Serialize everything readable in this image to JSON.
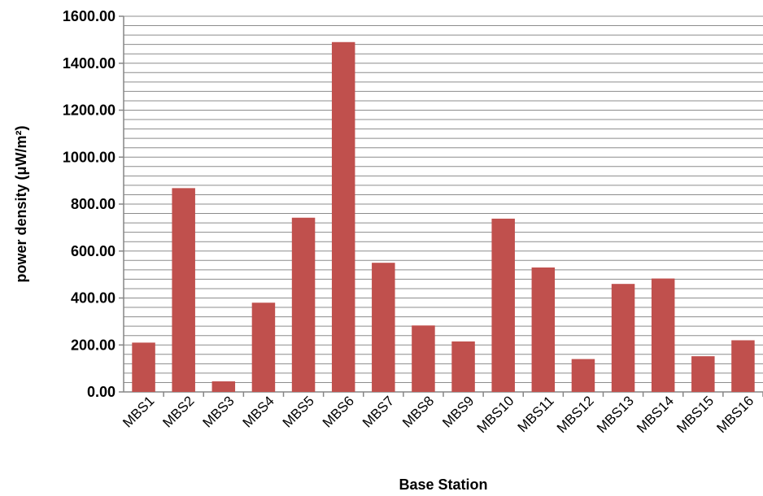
{
  "chart_data": {
    "type": "bar",
    "title": "",
    "xlabel": "Base Station",
    "ylabel": "power density (μW/m²)",
    "ylim": [
      0,
      1600
    ],
    "yticks": [
      "0.00",
      "200.00",
      "400.00",
      "600.00",
      "800.00",
      "1000.00",
      "1200.00",
      "1400.00",
      "1600.00"
    ],
    "ytick_values": [
      0,
      200,
      400,
      600,
      800,
      1000,
      1200,
      1400,
      1600
    ],
    "minor_gridline_step": 40,
    "grid": true,
    "legend": "none",
    "bar_color": "#C0504D",
    "categories": [
      "MBS1",
      "MBS2",
      "MBS3",
      "MBS4",
      "MBS5",
      "MBS6",
      "MBS7",
      "MBS8",
      "MBS9",
      "MBS10",
      "MBS11",
      "MBS12",
      "MBS13",
      "MBS14",
      "MBS15",
      "MBS16"
    ],
    "values": [
      210,
      868,
      45,
      380,
      742,
      1490,
      550,
      283,
      215,
      738,
      530,
      140,
      460,
      483,
      152,
      220
    ]
  }
}
